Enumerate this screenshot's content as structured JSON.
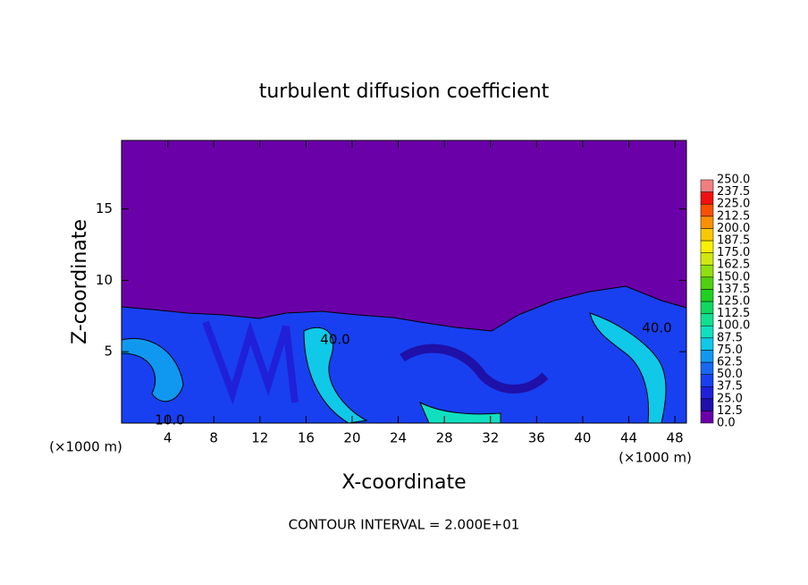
{
  "chart_data": {
    "type": "contour",
    "title": "turbulent diffusion coefficient",
    "x_label": "X-coordinate",
    "y_label": "Z-coordinate",
    "x_unit": "(×1000 m)",
    "y_unit": "(×1000 m)",
    "footer": "CONTOUR INTERVAL = 2.000E+01",
    "xlim": [
      0,
      49
    ],
    "xticks": [
      4,
      8,
      12,
      16,
      20,
      24,
      28,
      32,
      36,
      40,
      44,
      48
    ],
    "ylim": [
      0,
      19.8
    ],
    "yticks": [
      5,
      10,
      15
    ],
    "contour_labels": [
      "40.0",
      "40.0",
      "10.0"
    ],
    "colorbar": {
      "levels": [
        {
          "value": 0,
          "label": "0.0"
        },
        12.5,
        {
          "value": 25,
          "label": "25.0"
        },
        37.5,
        {
          "value": 50,
          "label": "50.0"
        },
        62.5,
        {
          "value": 75,
          "label": "75.0"
        },
        87.5,
        {
          "value": 100,
          "label": "100.0"
        },
        112.5,
        {
          "value": 125,
          "label": "125.0"
        },
        137.5,
        {
          "value": 150,
          "label": "150.0"
        },
        162.5,
        {
          "value": 175,
          "label": "175.0"
        },
        187.5,
        {
          "value": 200,
          "label": "200.0"
        },
        212.5,
        {
          "value": 225,
          "label": "225.0"
        },
        237.5,
        {
          "value": 250,
          "label": "250.0"
        }
      ],
      "colors": [
        "#6a00a8",
        "#1e10a8",
        "#2020d8",
        "#1840f0",
        "#1868f0",
        "#1098f0",
        "#10c8e8",
        "#10e0c0",
        "#10e090",
        "#10d860",
        "#20d020",
        "#50d010",
        "#90e010",
        "#d0e810",
        "#f8f000",
        "#f8c800",
        "#f89000",
        "#f85000",
        "#f01010",
        "#f08080"
      ]
    }
  }
}
